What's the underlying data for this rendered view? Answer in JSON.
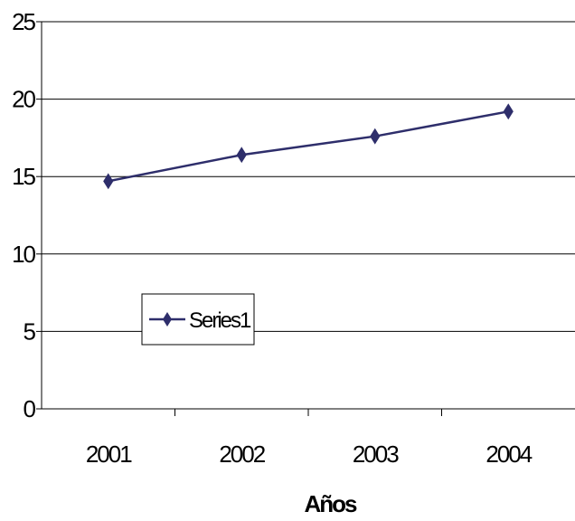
{
  "chart_data": {
    "type": "line",
    "categories": [
      "2001",
      "2002",
      "2003",
      "2004"
    ],
    "series": [
      {
        "name": "Series1",
        "values": [
          14.7,
          16.4,
          17.6,
          19.2
        ]
      }
    ],
    "title": "",
    "xlabel": "Años",
    "ylabel": "",
    "ylim": [
      0,
      25
    ],
    "yticks": [
      0,
      5,
      10,
      15,
      20,
      25
    ],
    "grid": true,
    "legend": "center-left",
    "colors": {
      "series": "#2e2e6b",
      "grid": "#000000",
      "axis": "#000000"
    }
  }
}
